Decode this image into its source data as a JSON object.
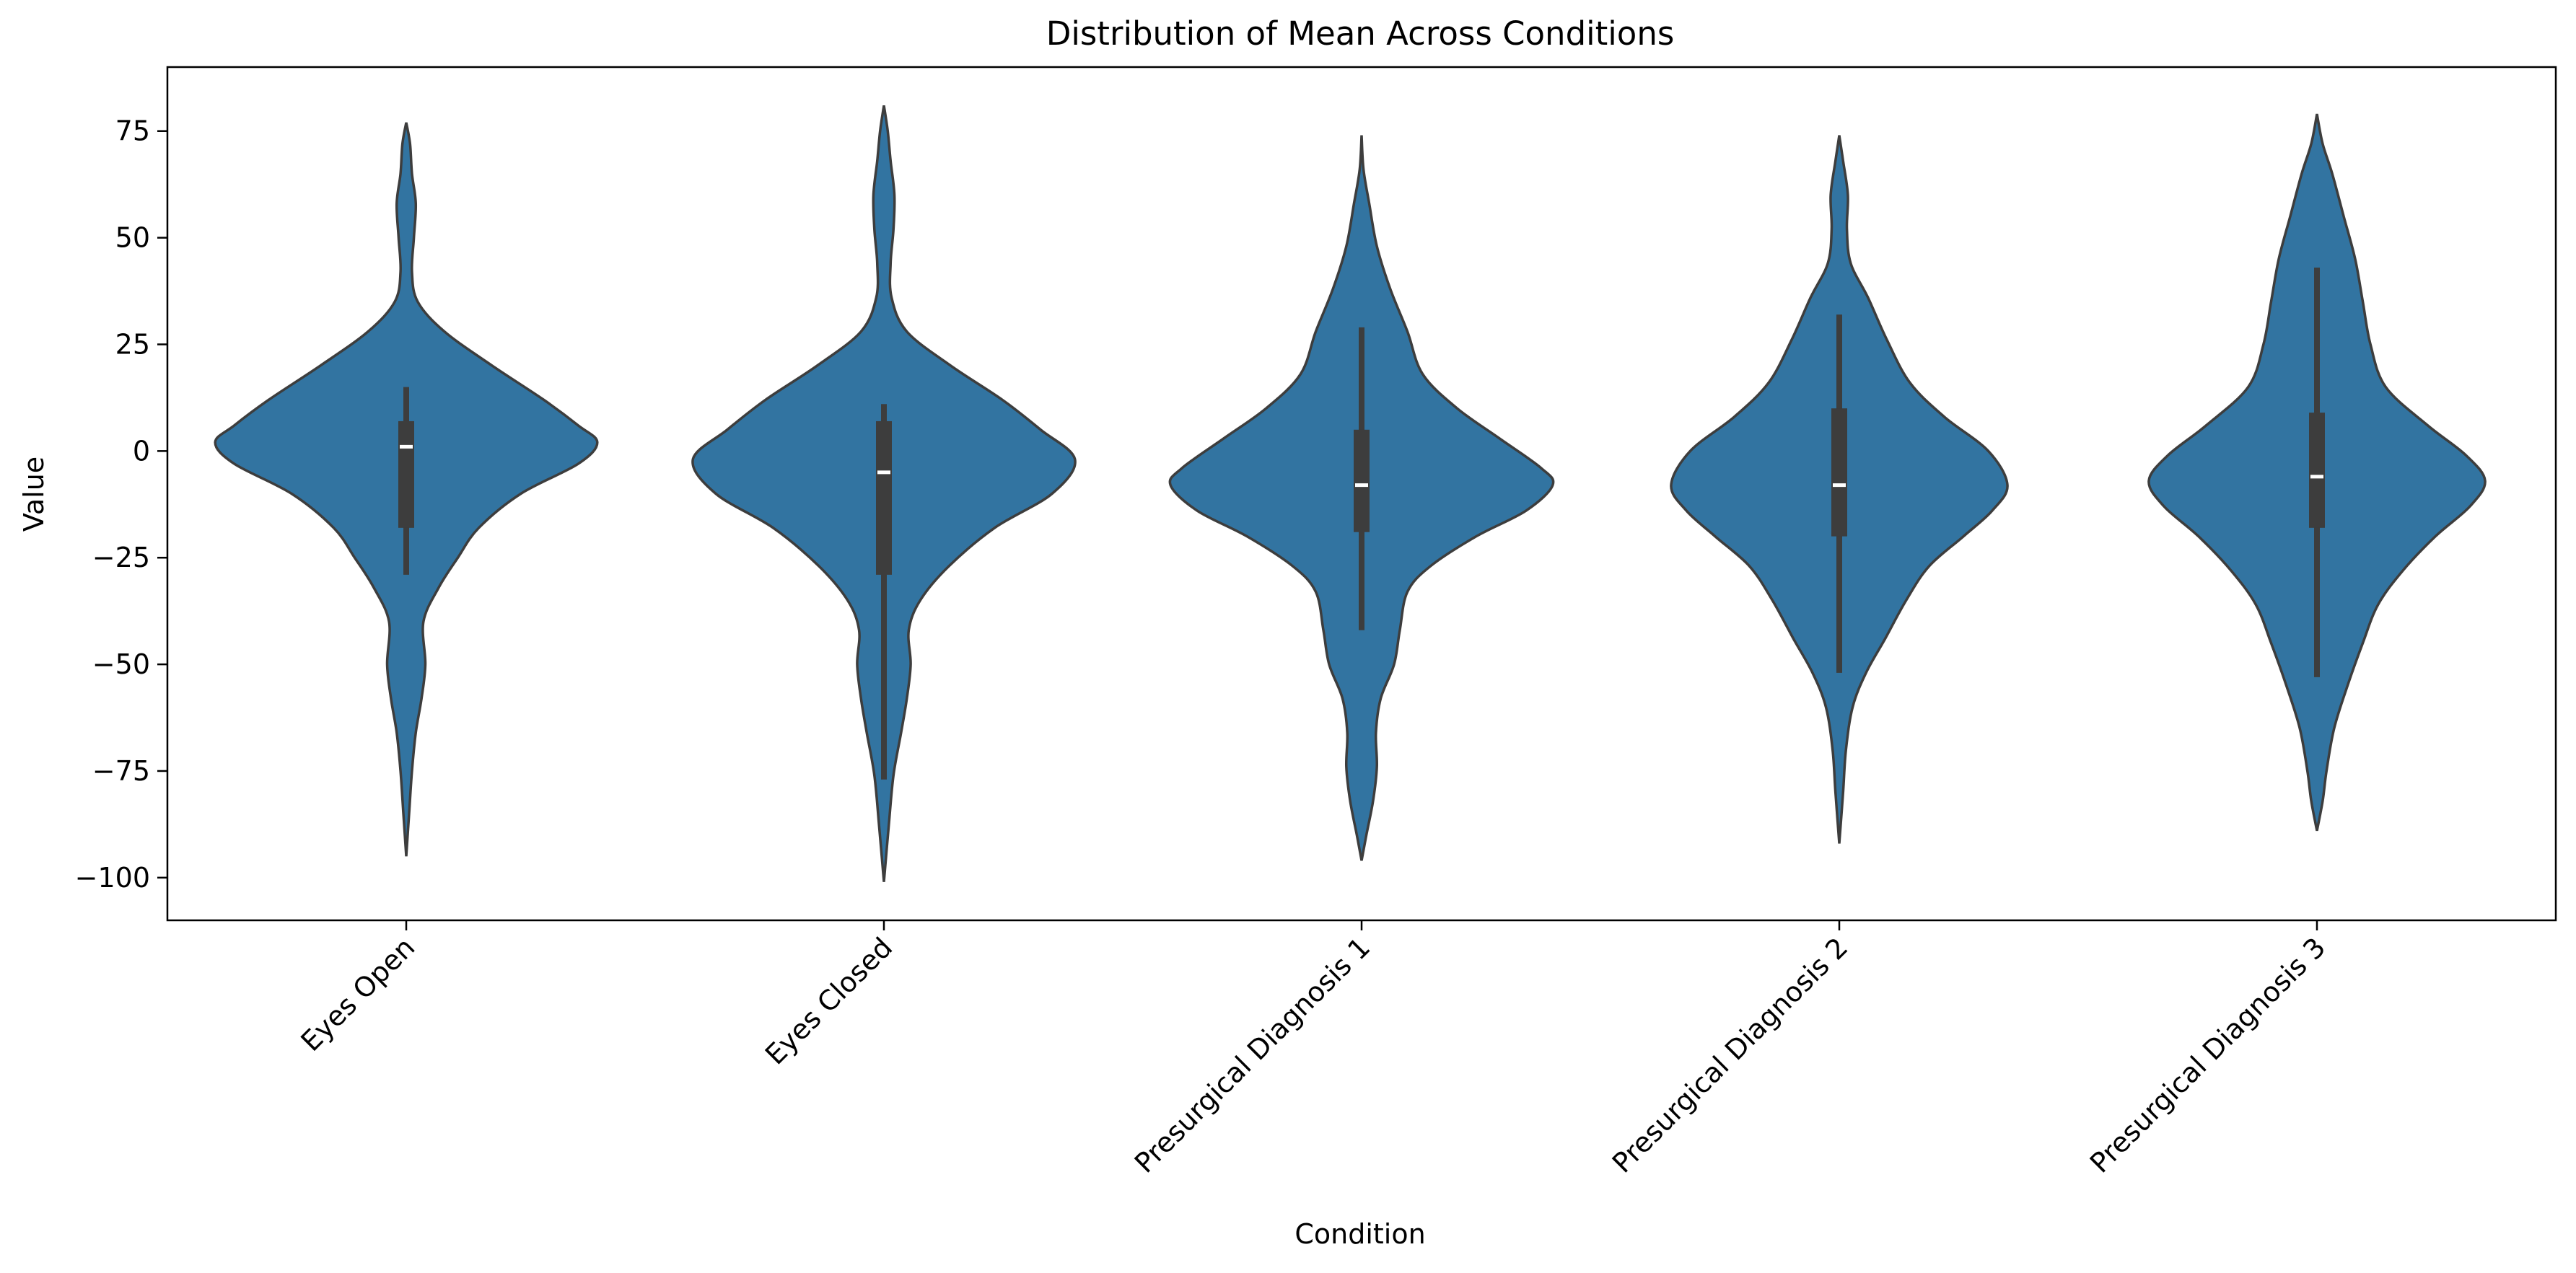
{
  "chart_data": {
    "type": "violin",
    "title": "Distribution of Mean Across Conditions",
    "xlabel": "Condition",
    "ylabel": "Value",
    "ylim": [
      -110,
      90
    ],
    "y_ticks": [
      75,
      50,
      25,
      0,
      -25,
      -50,
      -75,
      -100
    ],
    "y_tick_labels": [
      "75",
      "50",
      "25",
      "0",
      "−25",
      "−50",
      "−75",
      "−100"
    ],
    "grid": false,
    "legend": "none",
    "colors": {
      "violin_fill": "#3274a1",
      "violin_edge": "#3d3d3d",
      "box": "#3d3d3d",
      "median": "#ffffff"
    },
    "categories": [
      "Eyes Open",
      "Eyes Closed",
      "Presurgical Diagnosis 1",
      "Presurgical Diagnosis 2",
      "Presurgical Diagnosis 3"
    ],
    "violins": [
      {
        "category": "Eyes Open",
        "min": -95,
        "max": 77,
        "whisker_low": -29,
        "whisker_high": 15,
        "q1": -18,
        "q3": 7,
        "median": 1,
        "density_profile": [
          [
            77,
            0.0
          ],
          [
            72,
            0.02
          ],
          [
            65,
            0.03
          ],
          [
            58,
            0.05
          ],
          [
            50,
            0.04
          ],
          [
            42,
            0.03
          ],
          [
            35,
            0.06
          ],
          [
            28,
            0.2
          ],
          [
            20,
            0.45
          ],
          [
            12,
            0.72
          ],
          [
            6,
            0.9
          ],
          [
            2,
            1.0
          ],
          [
            -3,
            0.9
          ],
          [
            -10,
            0.6
          ],
          [
            -18,
            0.38
          ],
          [
            -25,
            0.27
          ],
          [
            -32,
            0.17
          ],
          [
            -40,
            0.09
          ],
          [
            -50,
            0.1
          ],
          [
            -58,
            0.08
          ],
          [
            -66,
            0.05
          ],
          [
            -75,
            0.03
          ],
          [
            -85,
            0.015
          ],
          [
            -95,
            0.0
          ]
        ]
      },
      {
        "category": "Eyes Closed",
        "min": -101,
        "max": 81,
        "whisker_low": -77,
        "whisker_high": 11,
        "q1": -29,
        "q3": 7,
        "median": -5,
        "density_profile": [
          [
            81,
            0.0
          ],
          [
            75,
            0.02
          ],
          [
            68,
            0.035
          ],
          [
            60,
            0.055
          ],
          [
            52,
            0.05
          ],
          [
            44,
            0.035
          ],
          [
            36,
            0.04
          ],
          [
            28,
            0.12
          ],
          [
            20,
            0.35
          ],
          [
            12,
            0.62
          ],
          [
            5,
            0.82
          ],
          [
            -2,
            1.0
          ],
          [
            -10,
            0.88
          ],
          [
            -18,
            0.58
          ],
          [
            -27,
            0.34
          ],
          [
            -35,
            0.19
          ],
          [
            -42,
            0.13
          ],
          [
            -50,
            0.14
          ],
          [
            -58,
            0.12
          ],
          [
            -66,
            0.09
          ],
          [
            -76,
            0.05
          ],
          [
            -88,
            0.025
          ],
          [
            -101,
            0.0
          ]
        ]
      },
      {
        "category": "Presurgical Diagnosis 1",
        "min": -96,
        "max": 74,
        "whisker_low": -42,
        "whisker_high": 29,
        "q1": -19,
        "q3": 5,
        "median": -8,
        "density_profile": [
          [
            74,
            0.0
          ],
          [
            66,
            0.01
          ],
          [
            58,
            0.04
          ],
          [
            48,
            0.08
          ],
          [
            38,
            0.15
          ],
          [
            28,
            0.24
          ],
          [
            18,
            0.32
          ],
          [
            10,
            0.5
          ],
          [
            3,
            0.72
          ],
          [
            -4,
            0.94
          ],
          [
            -8,
            1.0
          ],
          [
            -14,
            0.86
          ],
          [
            -20,
            0.6
          ],
          [
            -27,
            0.36
          ],
          [
            -33,
            0.24
          ],
          [
            -42,
            0.2
          ],
          [
            -50,
            0.17
          ],
          [
            -58,
            0.1
          ],
          [
            -66,
            0.075
          ],
          [
            -74,
            0.08
          ],
          [
            -82,
            0.06
          ],
          [
            -90,
            0.025
          ],
          [
            -96,
            0.0
          ]
        ]
      },
      {
        "category": "Presurgical Diagnosis 2",
        "min": -92,
        "max": 74,
        "whisker_low": -52,
        "whisker_high": 32,
        "q1": -20,
        "q3": 10,
        "median": -8,
        "density_profile": [
          [
            74,
            0.0
          ],
          [
            68,
            0.02
          ],
          [
            60,
            0.045
          ],
          [
            52,
            0.04
          ],
          [
            44,
            0.06
          ],
          [
            36,
            0.15
          ],
          [
            26,
            0.25
          ],
          [
            16,
            0.37
          ],
          [
            8,
            0.55
          ],
          [
            0,
            0.78
          ],
          [
            -8,
            0.88
          ],
          [
            -14,
            0.8
          ],
          [
            -20,
            0.65
          ],
          [
            -27,
            0.47
          ],
          [
            -35,
            0.35
          ],
          [
            -44,
            0.24
          ],
          [
            -52,
            0.14
          ],
          [
            -60,
            0.07
          ],
          [
            -70,
            0.035
          ],
          [
            -80,
            0.02
          ],
          [
            -92,
            0.0
          ]
        ]
      },
      {
        "category": "Presurgical Diagnosis 3",
        "min": -89,
        "max": 79,
        "whisker_low": -53,
        "whisker_high": 43,
        "q1": -18,
        "q3": 9,
        "median": -6,
        "density_profile": [
          [
            79,
            0.0
          ],
          [
            72,
            0.03
          ],
          [
            65,
            0.08
          ],
          [
            55,
            0.14
          ],
          [
            45,
            0.2
          ],
          [
            35,
            0.24
          ],
          [
            25,
            0.28
          ],
          [
            15,
            0.36
          ],
          [
            6,
            0.58
          ],
          [
            -1,
            0.78
          ],
          [
            -7,
            0.88
          ],
          [
            -13,
            0.8
          ],
          [
            -20,
            0.62
          ],
          [
            -28,
            0.45
          ],
          [
            -36,
            0.32
          ],
          [
            -45,
            0.24
          ],
          [
            -55,
            0.16
          ],
          [
            -65,
            0.09
          ],
          [
            -75,
            0.05
          ],
          [
            -82,
            0.03
          ],
          [
            -89,
            0.0
          ]
        ]
      }
    ]
  }
}
